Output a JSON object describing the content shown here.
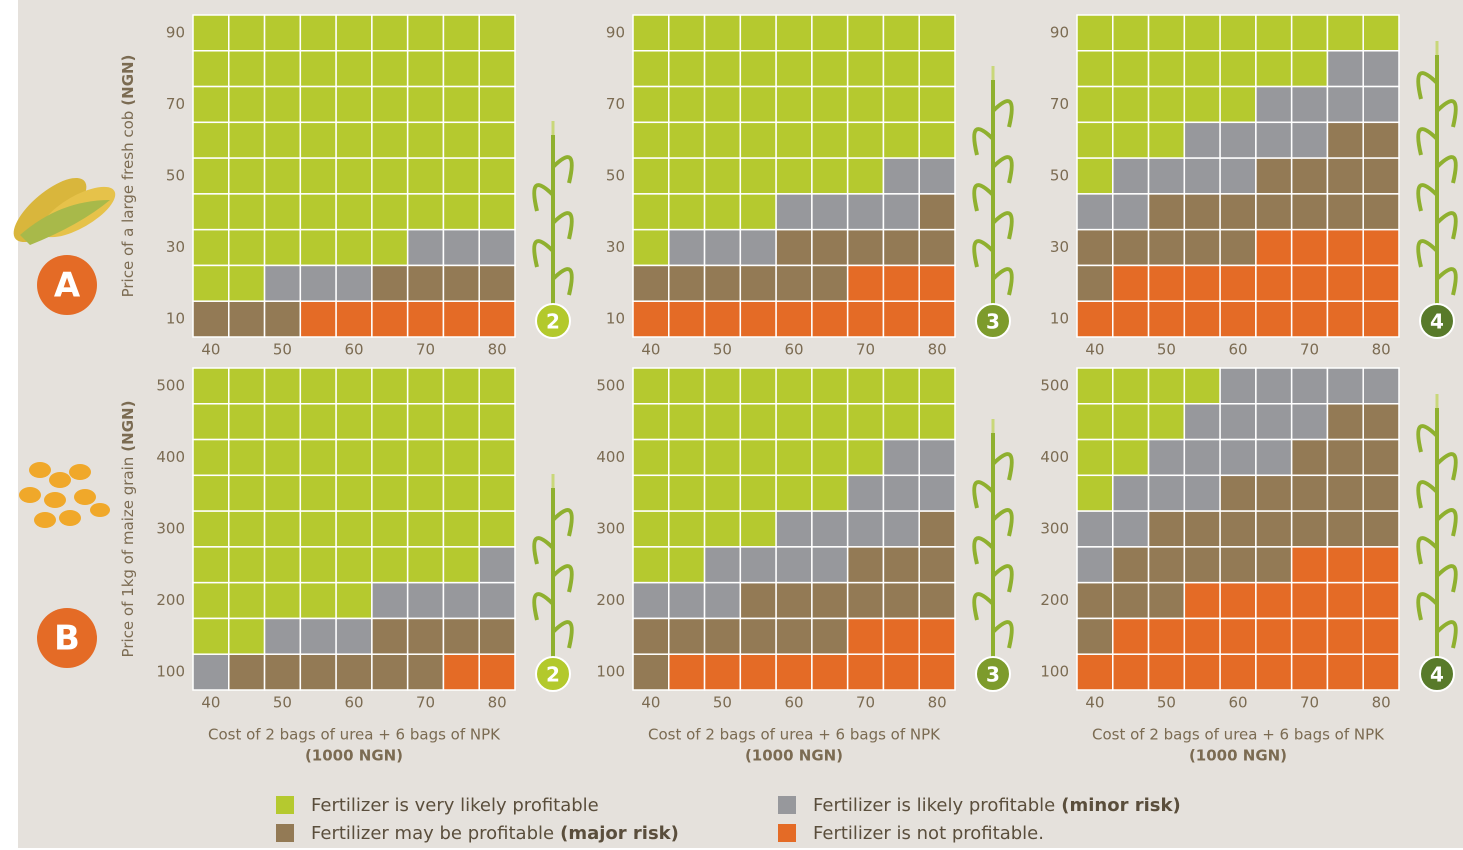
{
  "chart_data": [
    {
      "type": "heatmap",
      "ylabel": "Price of a large fresh cob",
      "ylabel_bold": "(NGN)",
      "row_label": "A",
      "badge": "2",
      "badge_color": "#b3c92c",
      "x": [
        40,
        45,
        50,
        55,
        60,
        65,
        70,
        75,
        80
      ],
      "y": [
        90,
        80,
        70,
        60,
        50,
        40,
        30,
        20,
        10
      ],
      "xlim": [
        37.5,
        82.5
      ],
      "ylim": [
        5,
        95
      ],
      "xticks": [
        40,
        50,
        60,
        70,
        80
      ],
      "yticks": [
        10,
        30,
        50,
        70,
        90
      ],
      "values": [
        [
          0,
          0,
          0,
          0,
          0,
          0,
          0,
          0,
          0
        ],
        [
          0,
          0,
          0,
          0,
          0,
          0,
          0,
          0,
          0
        ],
        [
          0,
          0,
          0,
          0,
          0,
          0,
          0,
          0,
          0
        ],
        [
          0,
          0,
          0,
          0,
          0,
          0,
          0,
          0,
          0
        ],
        [
          0,
          0,
          0,
          0,
          0,
          0,
          0,
          0,
          0
        ],
        [
          0,
          0,
          0,
          0,
          0,
          0,
          0,
          0,
          0
        ],
        [
          0,
          0,
          0,
          0,
          0,
          0,
          1,
          1,
          1
        ],
        [
          0,
          0,
          1,
          1,
          1,
          2,
          2,
          2,
          2
        ],
        [
          2,
          2,
          2,
          3,
          3,
          3,
          3,
          3,
          3
        ]
      ]
    },
    {
      "type": "heatmap",
      "badge": "3",
      "badge_color": "#7d9b2c",
      "x": [
        40,
        45,
        50,
        55,
        60,
        65,
        70,
        75,
        80
      ],
      "y": [
        90,
        80,
        70,
        60,
        50,
        40,
        30,
        20,
        10
      ],
      "xlim": [
        37.5,
        82.5
      ],
      "ylim": [
        5,
        95
      ],
      "xticks": [
        40,
        50,
        60,
        70,
        80
      ],
      "yticks": [
        10,
        30,
        50,
        70,
        90
      ],
      "values": [
        [
          0,
          0,
          0,
          0,
          0,
          0,
          0,
          0,
          0
        ],
        [
          0,
          0,
          0,
          0,
          0,
          0,
          0,
          0,
          0
        ],
        [
          0,
          0,
          0,
          0,
          0,
          0,
          0,
          0,
          0
        ],
        [
          0,
          0,
          0,
          0,
          0,
          0,
          0,
          0,
          0
        ],
        [
          0,
          0,
          0,
          0,
          0,
          0,
          0,
          1,
          1
        ],
        [
          0,
          0,
          0,
          0,
          1,
          1,
          1,
          1,
          2
        ],
        [
          0,
          1,
          1,
          1,
          2,
          2,
          2,
          2,
          2
        ],
        [
          2,
          2,
          2,
          2,
          2,
          2,
          3,
          3,
          3
        ],
        [
          3,
          3,
          3,
          3,
          3,
          3,
          3,
          3,
          3
        ]
      ]
    },
    {
      "type": "heatmap",
      "badge": "4",
      "badge_color": "#587a2a",
      "x": [
        40,
        45,
        50,
        55,
        60,
        65,
        70,
        75,
        80
      ],
      "y": [
        90,
        80,
        70,
        60,
        50,
        40,
        30,
        20,
        10
      ],
      "xlim": [
        37.5,
        82.5
      ],
      "ylim": [
        5,
        95
      ],
      "xticks": [
        40,
        50,
        60,
        70,
        80
      ],
      "yticks": [
        10,
        30,
        50,
        70,
        90
      ],
      "values": [
        [
          0,
          0,
          0,
          0,
          0,
          0,
          0,
          0,
          0
        ],
        [
          0,
          0,
          0,
          0,
          0,
          0,
          0,
          1,
          1
        ],
        [
          0,
          0,
          0,
          0,
          0,
          1,
          1,
          1,
          1
        ],
        [
          0,
          0,
          0,
          1,
          1,
          1,
          1,
          2,
          2
        ],
        [
          0,
          1,
          1,
          1,
          1,
          2,
          2,
          2,
          2
        ],
        [
          1,
          1,
          2,
          2,
          2,
          2,
          2,
          2,
          2
        ],
        [
          2,
          2,
          2,
          2,
          2,
          3,
          3,
          3,
          3
        ],
        [
          2,
          3,
          3,
          3,
          3,
          3,
          3,
          3,
          3
        ],
        [
          3,
          3,
          3,
          3,
          3,
          3,
          3,
          3,
          3
        ]
      ]
    },
    {
      "type": "heatmap",
      "ylabel": "Price of 1kg of maize grain",
      "ylabel_bold": "(NGN)",
      "row_label": "B",
      "badge": "2",
      "badge_color": "#b3c92c",
      "xlabel": "Cost of 2 bags of urea + 6 bags of NPK",
      "xlabel_bold": "(1000 NGN)",
      "x": [
        40,
        45,
        50,
        55,
        60,
        65,
        70,
        75,
        80
      ],
      "y": [
        500,
        450,
        400,
        350,
        300,
        250,
        200,
        150,
        100
      ],
      "xlim": [
        37.5,
        82.5
      ],
      "ylim": [
        75,
        525
      ],
      "xticks": [
        40,
        50,
        60,
        70,
        80
      ],
      "yticks": [
        100,
        200,
        300,
        400,
        500
      ],
      "values": [
        [
          0,
          0,
          0,
          0,
          0,
          0,
          0,
          0,
          0
        ],
        [
          0,
          0,
          0,
          0,
          0,
          0,
          0,
          0,
          0
        ],
        [
          0,
          0,
          0,
          0,
          0,
          0,
          0,
          0,
          0
        ],
        [
          0,
          0,
          0,
          0,
          0,
          0,
          0,
          0,
          0
        ],
        [
          0,
          0,
          0,
          0,
          0,
          0,
          0,
          0,
          0
        ],
        [
          0,
          0,
          0,
          0,
          0,
          0,
          0,
          0,
          1
        ],
        [
          0,
          0,
          0,
          0,
          0,
          1,
          1,
          1,
          1
        ],
        [
          0,
          0,
          1,
          1,
          1,
          2,
          2,
          2,
          2
        ],
        [
          1,
          2,
          2,
          2,
          2,
          2,
          2,
          3,
          3
        ]
      ]
    },
    {
      "type": "heatmap",
      "badge": "3",
      "badge_color": "#7d9b2c",
      "xlabel": "Cost of 2 bags of urea + 6 bags of NPK",
      "xlabel_bold": "(1000 NGN)",
      "x": [
        40,
        45,
        50,
        55,
        60,
        65,
        70,
        75,
        80
      ],
      "y": [
        500,
        450,
        400,
        350,
        300,
        250,
        200,
        150,
        100
      ],
      "xlim": [
        37.5,
        82.5
      ],
      "ylim": [
        75,
        525
      ],
      "xticks": [
        40,
        50,
        60,
        70,
        80
      ],
      "yticks": [
        100,
        200,
        300,
        400,
        500
      ],
      "values": [
        [
          0,
          0,
          0,
          0,
          0,
          0,
          0,
          0,
          0
        ],
        [
          0,
          0,
          0,
          0,
          0,
          0,
          0,
          0,
          0
        ],
        [
          0,
          0,
          0,
          0,
          0,
          0,
          0,
          1,
          1
        ],
        [
          0,
          0,
          0,
          0,
          0,
          0,
          1,
          1,
          1
        ],
        [
          0,
          0,
          0,
          0,
          1,
          1,
          1,
          1,
          2
        ],
        [
          0,
          0,
          1,
          1,
          1,
          1,
          2,
          2,
          2
        ],
        [
          1,
          1,
          1,
          2,
          2,
          2,
          2,
          2,
          2
        ],
        [
          2,
          2,
          2,
          2,
          2,
          2,
          3,
          3,
          3
        ],
        [
          2,
          3,
          3,
          3,
          3,
          3,
          3,
          3,
          3
        ]
      ]
    },
    {
      "type": "heatmap",
      "badge": "4",
      "badge_color": "#587a2a",
      "xlabel": "Cost of 2 bags of urea + 6 bags of NPK",
      "xlabel_bold": "(1000 NGN)",
      "x": [
        40,
        45,
        50,
        55,
        60,
        65,
        70,
        75,
        80
      ],
      "y": [
        500,
        450,
        400,
        350,
        300,
        250,
        200,
        150,
        100
      ],
      "xlim": [
        37.5,
        82.5
      ],
      "ylim": [
        75,
        525
      ],
      "xticks": [
        40,
        50,
        60,
        70,
        80
      ],
      "yticks": [
        100,
        200,
        300,
        400,
        500
      ],
      "values": [
        [
          0,
          0,
          0,
          0,
          1,
          1,
          1,
          1,
          1
        ],
        [
          0,
          0,
          0,
          1,
          1,
          1,
          1,
          2,
          2
        ],
        [
          0,
          0,
          1,
          1,
          1,
          1,
          2,
          2,
          2
        ],
        [
          0,
          1,
          1,
          1,
          2,
          2,
          2,
          2,
          2
        ],
        [
          1,
          1,
          2,
          2,
          2,
          2,
          2,
          2,
          2
        ],
        [
          1,
          2,
          2,
          2,
          2,
          2,
          3,
          3,
          3
        ],
        [
          2,
          2,
          2,
          3,
          3,
          3,
          3,
          3,
          3
        ],
        [
          2,
          3,
          3,
          3,
          3,
          3,
          3,
          3,
          3
        ],
        [
          3,
          3,
          3,
          3,
          3,
          3,
          3,
          3,
          3
        ]
      ]
    }
  ],
  "legend": [
    {
      "text": "Fertilizer is very likely profitable",
      "color": "#b5c92f"
    },
    {
      "text": "Fertilizer is likely profitable",
      "bold": "(minor risk)",
      "color": "#97989c"
    },
    {
      "text": "Fertilizer may be profitable",
      "bold": "(major risk)",
      "color": "#937a55"
    },
    {
      "text": "Fertilizer is not profitable.",
      "color": "#e46b26"
    }
  ]
}
